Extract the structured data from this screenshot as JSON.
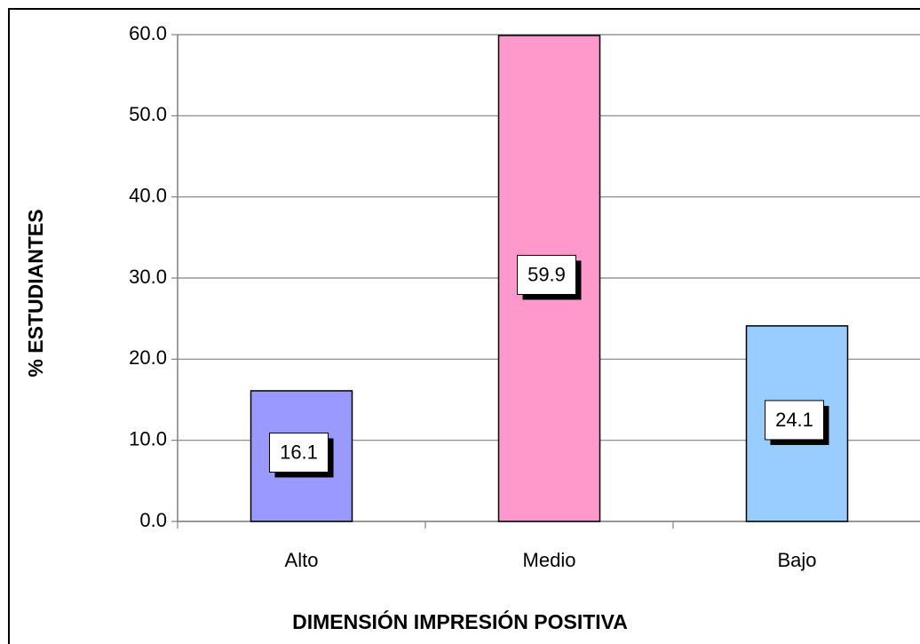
{
  "chart_data": {
    "type": "bar",
    "xlabel": "DIMENSIÓN IMPRESIÓN POSITIVA",
    "ylabel": "% ESTUDIANTES",
    "categories": [
      "Alto",
      "Medio",
      "Bajo"
    ],
    "values": [
      16.1,
      59.9,
      24.1
    ],
    "colors": [
      "#9999ff",
      "#ff99cc",
      "#99ccff"
    ],
    "ylim": [
      0,
      60
    ],
    "yticks": [
      {
        "value": 0,
        "label": "0.0"
      },
      {
        "value": 10,
        "label": "10.0"
      },
      {
        "value": 20,
        "label": "20.0"
      },
      {
        "value": 30,
        "label": "30.0"
      },
      {
        "value": 40,
        "label": "40.0"
      },
      {
        "value": 50,
        "label": "50.0"
      },
      {
        "value": 60,
        "label": "60.0"
      }
    ],
    "grid": true
  }
}
